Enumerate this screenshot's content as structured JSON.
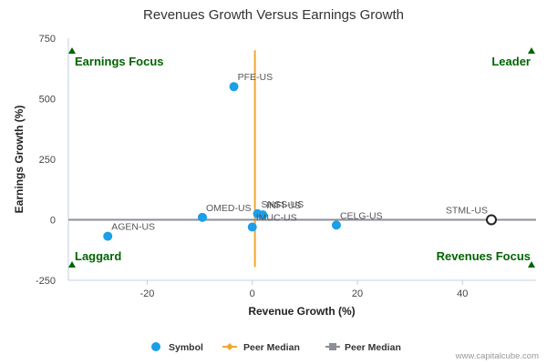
{
  "chart_data": {
    "type": "scatter",
    "title": "Revenues Growth Versus Earnings Growth",
    "xlabel": "Revenue Growth (%)",
    "ylabel": "Earnings Growth (%)",
    "xlim": [
      -35,
      54
    ],
    "ylim": [
      -250,
      750
    ],
    "xticks": [
      -20,
      0,
      20,
      40
    ],
    "yticks": [
      -250,
      0,
      250,
      500,
      750
    ],
    "grid": false,
    "series": [
      {
        "name": "Symbol",
        "points": [
          {
            "label": "PFE-US",
            "x": -3.5,
            "y": 550
          },
          {
            "label": "OMED-US",
            "x": -9.5,
            "y": 10
          },
          {
            "label": "SNSS-US",
            "x": 1,
            "y": 25
          },
          {
            "label": "INFI-US",
            "x": 2,
            "y": 20
          },
          {
            "label": "IMUC-US",
            "x": 0,
            "y": -30
          },
          {
            "label": "AGEN-US",
            "x": -27.5,
            "y": -68
          },
          {
            "label": "CELG-US",
            "x": 16,
            "y": -22
          }
        ]
      },
      {
        "name": "Peer Median",
        "orientation": "vertical",
        "value": 0.5,
        "from": -195,
        "to": 700
      },
      {
        "name": "Peer Median",
        "orientation": "horizontal",
        "value": 0,
        "from": -35,
        "to": 54
      }
    ],
    "highlight": {
      "label": "STML-US",
      "x": 45.5,
      "y": 0
    },
    "quadrants": {
      "top_left": "Earnings Focus",
      "top_right": "Leader",
      "bottom_left": "Laggard",
      "bottom_right": "Revenues Focus"
    },
    "legend_position": "bottom-center",
    "colors": {
      "symbol": "#1a9fe8",
      "vertical_median": "#f0a830",
      "horizontal_median": "#8a8f99",
      "highlight": "#222222",
      "quadrant_text": "#006400",
      "axis": "#c0d0e0"
    }
  },
  "footer": {
    "credit": "www.capitalcube.com"
  }
}
